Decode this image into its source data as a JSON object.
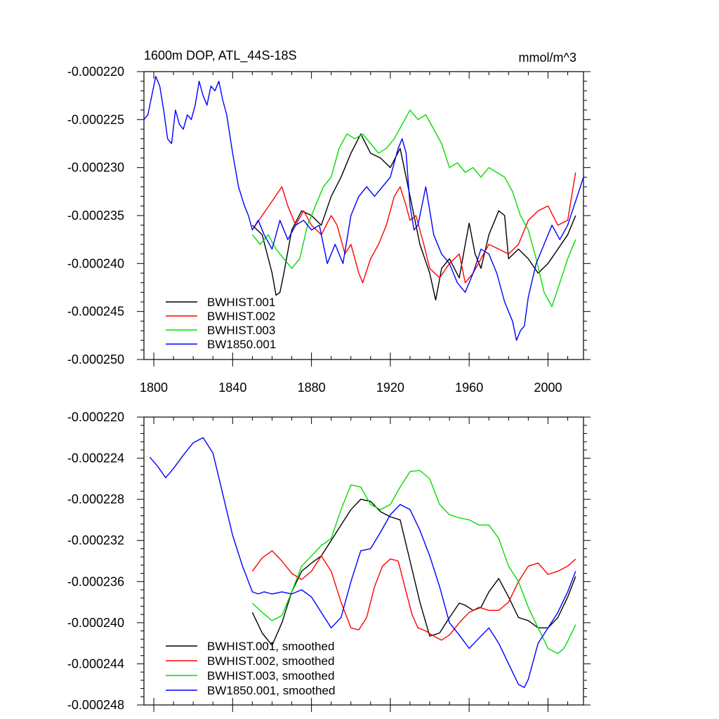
{
  "chart_data": [
    {
      "type": "line",
      "title": "1600m DOP, ATL_44S-18S",
      "units": "mmol/m^3",
      "xlabel": "",
      "ylabel": "",
      "xlim": [
        1795,
        2018
      ],
      "ylim": [
        -0.00025,
        -0.00022
      ],
      "xticks": [
        1800,
        1840,
        1880,
        1920,
        1960,
        2000
      ],
      "yticks": [
        -0.00025,
        -0.000245,
        -0.00024,
        -0.000235,
        -0.00023,
        -0.000225,
        -0.00022
      ],
      "ytick_labels": [
        "-0.000250",
        "-0.000245",
        "-0.000240",
        "-0.000235",
        "-0.000230",
        "-0.000225",
        "-0.000220"
      ],
      "legend_position": "bottom-left",
      "series": [
        {
          "name": "BWHIST.001",
          "color": "#000000",
          "x": [
            1850,
            1855,
            1860,
            1862,
            1864,
            1866,
            1870,
            1875,
            1880,
            1885,
            1890,
            1895,
            1900,
            1905,
            1910,
            1915,
            1920,
            1925,
            1930,
            1935,
            1940,
            1943,
            1946,
            1950,
            1955,
            1958,
            1960,
            1963,
            1966,
            1970,
            1975,
            1978,
            1980,
            1985,
            1990,
            1995,
            2000,
            2005,
            2010,
            2014
          ],
          "y": [
            -0.000236,
            -0.000237,
            -0.000241,
            -0.0002433,
            -0.000243,
            -0.000241,
            -0.0002365,
            -0.0002345,
            -0.000235,
            -0.000236,
            -0.000233,
            -0.000231,
            -0.0002285,
            -0.0002265,
            -0.0002285,
            -0.000229,
            -0.00023,
            -0.000228,
            -0.000233,
            -0.000238,
            -0.000241,
            -0.0002438,
            -0.0002405,
            -0.0002395,
            -0.0002415,
            -0.000238,
            -0.0002358,
            -0.000239,
            -0.0002405,
            -0.000237,
            -0.0002345,
            -0.000235,
            -0.0002395,
            -0.0002385,
            -0.0002395,
            -0.000241,
            -0.00024,
            -0.0002385,
            -0.000237,
            -0.000235
          ]
        },
        {
          "name": "BWHIST.002",
          "color": "#ff0000",
          "x": [
            1850,
            1855,
            1860,
            1865,
            1868,
            1872,
            1876,
            1880,
            1885,
            1890,
            1893,
            1897,
            1900,
            1904,
            1906,
            1910,
            1914,
            1918,
            1922,
            1925,
            1928,
            1930,
            1933,
            1937,
            1940,
            1945,
            1950,
            1955,
            1958,
            1962,
            1966,
            1970,
            1975,
            1980,
            1985,
            1990,
            1995,
            2000,
            2005,
            2010,
            2014
          ],
          "y": [
            -0.0002365,
            -0.000235,
            -0.0002335,
            -0.000232,
            -0.000234,
            -0.000236,
            -0.0002345,
            -0.000236,
            -0.000237,
            -0.000235,
            -0.000236,
            -0.000239,
            -0.000238,
            -0.000241,
            -0.000242,
            -0.0002395,
            -0.000238,
            -0.000236,
            -0.000233,
            -0.000232,
            -0.000234,
            -0.0002355,
            -0.000235,
            -0.000238,
            -0.0002405,
            -0.0002415,
            -0.00024,
            -0.000239,
            -0.000242,
            -0.000241,
            -0.0002395,
            -0.000238,
            -0.0002385,
            -0.000239,
            -0.000238,
            -0.0002355,
            -0.0002345,
            -0.000234,
            -0.000236,
            -0.0002355,
            -0.0002305
          ]
        },
        {
          "name": "BWHIST.003",
          "color": "#00dd00",
          "x": [
            1850,
            1854,
            1858,
            1862,
            1866,
            1870,
            1874,
            1878,
            1882,
            1886,
            1890,
            1894,
            1898,
            1902,
            1906,
            1910,
            1914,
            1918,
            1922,
            1926,
            1930,
            1934,
            1938,
            1942,
            1946,
            1950,
            1954,
            1958,
            1962,
            1966,
            1970,
            1974,
            1978,
            1982,
            1986,
            1990,
            1994,
            1998,
            2002,
            2006,
            2010,
            2014
          ],
          "y": [
            -0.000237,
            -0.000238,
            -0.000237,
            -0.0002385,
            -0.0002395,
            -0.0002405,
            -0.0002395,
            -0.000236,
            -0.000234,
            -0.000232,
            -0.000231,
            -0.000228,
            -0.0002265,
            -0.000227,
            -0.0002265,
            -0.0002275,
            -0.0002285,
            -0.000228,
            -0.000227,
            -0.0002255,
            -0.000224,
            -0.000225,
            -0.0002245,
            -0.000226,
            -0.0002275,
            -0.00023,
            -0.0002295,
            -0.0002305,
            -0.00023,
            -0.000231,
            -0.00023,
            -0.0002305,
            -0.000231,
            -0.0002325,
            -0.000235,
            -0.0002365,
            -0.0002395,
            -0.000243,
            -0.0002445,
            -0.000242,
            -0.0002395,
            -0.0002375
          ]
        },
        {
          "name": "BW1850.001",
          "color": "#0000ff",
          "x": [
            1795,
            1797,
            1799,
            1801,
            1803,
            1805,
            1807,
            1809,
            1811,
            1813,
            1815,
            1817,
            1819,
            1821,
            1823,
            1825,
            1827,
            1829,
            1831,
            1833,
            1835,
            1837,
            1840,
            1843,
            1846,
            1848,
            1850,
            1853,
            1856,
            1860,
            1864,
            1868,
            1872,
            1876,
            1880,
            1884,
            1888,
            1892,
            1896,
            1900,
            1904,
            1908,
            1912,
            1916,
            1920,
            1924,
            1926,
            1928,
            1930,
            1932,
            1934,
            1938,
            1942,
            1946,
            1950,
            1954,
            1958,
            1962,
            1966,
            1970,
            1974,
            1978,
            1982,
            1984,
            1986,
            1988,
            1990,
            1994,
            1998,
            2002,
            2006,
            2010,
            2014,
            2018
          ],
          "y": [
            -0.000225,
            -0.0002245,
            -0.0002225,
            -0.0002205,
            -0.0002215,
            -0.000224,
            -0.000227,
            -0.0002275,
            -0.000224,
            -0.0002255,
            -0.000226,
            -0.0002245,
            -0.000225,
            -0.0002235,
            -0.000221,
            -0.0002225,
            -0.0002235,
            -0.0002215,
            -0.000222,
            -0.000221,
            -0.000223,
            -0.0002245,
            -0.0002285,
            -0.000232,
            -0.000234,
            -0.000235,
            -0.0002365,
            -0.0002355,
            -0.000237,
            -0.0002385,
            -0.0002355,
            -0.0002375,
            -0.000236,
            -0.0002355,
            -0.0002365,
            -0.000236,
            -0.00024,
            -0.000238,
            -0.00024,
            -0.000235,
            -0.000233,
            -0.000232,
            -0.000233,
            -0.000232,
            -0.000231,
            -0.000228,
            -0.000227,
            -0.0002285,
            -0.000234,
            -0.0002365,
            -0.000236,
            -0.000232,
            -0.000237,
            -0.000239,
            -0.00024,
            -0.000242,
            -0.000243,
            -0.000241,
            -0.0002385,
            -0.000239,
            -0.000241,
            -0.000244,
            -0.000246,
            -0.000248,
            -0.000247,
            -0.0002465,
            -0.0002435,
            -0.00024,
            -0.000238,
            -0.000236,
            -0.0002375,
            -0.000236,
            -0.0002335,
            -0.000231
          ]
        }
      ]
    },
    {
      "type": "line",
      "title": "",
      "xlabel": "",
      "ylabel": "",
      "xlim": [
        1795,
        2018
      ],
      "ylim": [
        -0.000248,
        -0.00022
      ],
      "xticks": [
        1800,
        1840,
        1880,
        1920,
        1960,
        2000
      ],
      "yticks": [
        -0.000248,
        -0.000244,
        -0.00024,
        -0.000236,
        -0.000232,
        -0.000228,
        -0.000224,
        -0.00022
      ],
      "ytick_labels": [
        "-0.000248",
        "-0.000244",
        "-0.000240",
        "-0.000236",
        "-0.000232",
        "-0.000228",
        "-0.000224",
        "-0.000220"
      ],
      "legend_position": "bottom-left",
      "series": [
        {
          "name": "BWHIST.001, smoothed",
          "color": "#000000",
          "x": [
            1850,
            1855,
            1860,
            1865,
            1870,
            1875,
            1880,
            1885,
            1890,
            1895,
            1900,
            1905,
            1910,
            1915,
            1920,
            1925,
            1930,
            1935,
            1940,
            1945,
            1950,
            1955,
            1958,
            1962,
            1966,
            1970,
            1975,
            1980,
            1985,
            1990,
            1995,
            2000,
            2005,
            2010,
            2014
          ],
          "y": [
            -0.000239,
            -0.000241,
            -0.0002422,
            -0.00024,
            -0.000237,
            -0.000235,
            -0.0002342,
            -0.0002335,
            -0.000232,
            -0.0002305,
            -0.000229,
            -0.000228,
            -0.0002282,
            -0.0002292,
            -0.0002297,
            -0.00023,
            -0.000234,
            -0.000238,
            -0.0002413,
            -0.000241,
            -0.0002395,
            -0.0002381,
            -0.0002383,
            -0.0002388,
            -0.0002385,
            -0.000237,
            -0.0002357,
            -0.0002375,
            -0.0002395,
            -0.0002398,
            -0.0002405,
            -0.0002405,
            -0.0002395,
            -0.0002375,
            -0.0002355
          ]
        },
        {
          "name": "BWHIST.002, smoothed",
          "color": "#ff0000",
          "x": [
            1850,
            1855,
            1860,
            1865,
            1870,
            1875,
            1880,
            1885,
            1890,
            1895,
            1900,
            1904,
            1908,
            1912,
            1916,
            1920,
            1924,
            1928,
            1931,
            1934,
            1938,
            1942,
            1946,
            1950,
            1955,
            1960,
            1965,
            1970,
            1975,
            1980,
            1985,
            1990,
            1995,
            2000,
            2005,
            2010,
            2014
          ],
          "y": [
            -0.000235,
            -0.0002337,
            -0.000233,
            -0.000234,
            -0.0002352,
            -0.0002358,
            -0.000235,
            -0.0002335,
            -0.000235,
            -0.000238,
            -0.0002405,
            -0.0002407,
            -0.0002395,
            -0.0002365,
            -0.0002345,
            -0.0002338,
            -0.000234,
            -0.000237,
            -0.0002392,
            -0.0002405,
            -0.0002408,
            -0.0002413,
            -0.0002417,
            -0.0002412,
            -0.00024,
            -0.000239,
            -0.0002385,
            -0.0002388,
            -0.0002388,
            -0.000238,
            -0.000236,
            -0.0002345,
            -0.0002342,
            -0.0002353,
            -0.000235,
            -0.0002345,
            -0.0002338
          ]
        },
        {
          "name": "BWHIST.003, smoothed",
          "color": "#00dd00",
          "x": [
            1850,
            1855,
            1860,
            1865,
            1870,
            1875,
            1880,
            1885,
            1890,
            1895,
            1900,
            1905,
            1910,
            1915,
            1920,
            1925,
            1930,
            1935,
            1940,
            1945,
            1950,
            1955,
            1960,
            1965,
            1970,
            1975,
            1980,
            1985,
            1990,
            1995,
            2000,
            2005,
            2008,
            2010,
            2014
          ],
          "y": [
            -0.0002381,
            -0.000239,
            -0.0002398,
            -0.0002393,
            -0.000237,
            -0.0002345,
            -0.0002335,
            -0.0002325,
            -0.0002318,
            -0.000229,
            -0.0002266,
            -0.0002268,
            -0.0002285,
            -0.000229,
            -0.0002285,
            -0.0002268,
            -0.0002253,
            -0.0002252,
            -0.000226,
            -0.0002285,
            -0.0002295,
            -0.0002298,
            -0.00023,
            -0.0002305,
            -0.0002305,
            -0.0002318,
            -0.0002345,
            -0.000236,
            -0.0002385,
            -0.0002405,
            -0.0002425,
            -0.000243,
            -0.0002425,
            -0.0002418,
            -0.0002402
          ]
        },
        {
          "name": "BW1850.001, smoothed",
          "color": "#0000ff",
          "x": [
            1798,
            1802,
            1806,
            1810,
            1815,
            1820,
            1825,
            1830,
            1835,
            1840,
            1845,
            1850,
            1853,
            1856,
            1860,
            1865,
            1870,
            1875,
            1880,
            1885,
            1890,
            1895,
            1900,
            1905,
            1910,
            1915,
            1920,
            1925,
            1930,
            1935,
            1940,
            1945,
            1950,
            1955,
            1960,
            1965,
            1970,
            1975,
            1980,
            1985,
            1988,
            1990,
            1995,
            2000,
            2005,
            2010,
            2014
          ],
          "y": [
            -0.0002239,
            -0.0002248,
            -0.0002259,
            -0.000225,
            -0.0002237,
            -0.0002225,
            -0.000222,
            -0.0002235,
            -0.0002275,
            -0.0002315,
            -0.0002345,
            -0.000237,
            -0.0002372,
            -0.000237,
            -0.0002372,
            -0.000237,
            -0.0002372,
            -0.0002368,
            -0.0002375,
            -0.000239,
            -0.0002405,
            -0.0002395,
            -0.000236,
            -0.000233,
            -0.0002328,
            -0.0002312,
            -0.0002295,
            -0.0002285,
            -0.000229,
            -0.000231,
            -0.0002335,
            -0.0002365,
            -0.00024,
            -0.0002412,
            -0.0002425,
            -0.0002415,
            -0.0002405,
            -0.000242,
            -0.000244,
            -0.000246,
            -0.0002463,
            -0.0002455,
            -0.000242,
            -0.0002405,
            -0.000239,
            -0.000237,
            -0.000235
          ]
        }
      ]
    }
  ]
}
